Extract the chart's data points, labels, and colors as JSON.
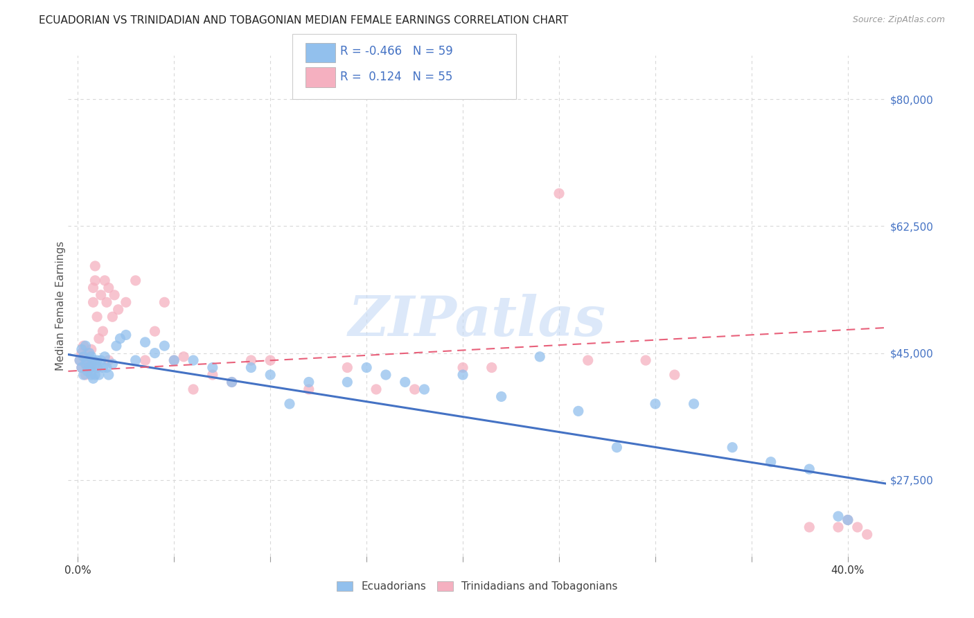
{
  "title": "ECUADORIAN VS TRINIDADIAN AND TOBAGONIAN MEDIAN FEMALE EARNINGS CORRELATION CHART",
  "source": "Source: ZipAtlas.com",
  "ylabel": "Median Female Earnings",
  "yticks": [
    27500,
    45000,
    62500,
    80000
  ],
  "ytick_labels": [
    "$27,500",
    "$45,000",
    "$62,500",
    "$80,000"
  ],
  "xlim": [
    -0.005,
    0.42
  ],
  "ylim": [
    17000,
    86000
  ],
  "r_blue": -0.466,
  "n_blue": 59,
  "r_pink": 0.124,
  "n_pink": 55,
  "blue_color": "#92c0ed",
  "pink_color": "#f5b0c0",
  "trend_blue": "#4472c4",
  "trend_pink": "#e8607a",
  "axis_label_color": "#4472c4",
  "watermark_color": "#c5daf5",
  "legend_ecuadorians": "Ecuadorians",
  "legend_tt": "Trinidadians and Tobagonians",
  "blue_scatter_x": [
    0.001,
    0.002,
    0.002,
    0.003,
    0.003,
    0.004,
    0.004,
    0.005,
    0.005,
    0.006,
    0.006,
    0.007,
    0.007,
    0.007,
    0.008,
    0.008,
    0.009,
    0.009,
    0.01,
    0.01,
    0.011,
    0.012,
    0.013,
    0.014,
    0.015,
    0.016,
    0.018,
    0.02,
    0.022,
    0.025,
    0.03,
    0.035,
    0.04,
    0.045,
    0.05,
    0.06,
    0.07,
    0.08,
    0.09,
    0.1,
    0.11,
    0.12,
    0.14,
    0.15,
    0.16,
    0.17,
    0.18,
    0.2,
    0.22,
    0.24,
    0.26,
    0.28,
    0.3,
    0.32,
    0.34,
    0.36,
    0.38,
    0.395,
    0.4
  ],
  "blue_scatter_y": [
    44000,
    45500,
    43000,
    42000,
    44500,
    46000,
    43500,
    44000,
    42500,
    45000,
    43000,
    44500,
    43000,
    42000,
    44000,
    41500,
    43500,
    42000,
    44000,
    43000,
    42000,
    44000,
    43000,
    44500,
    43000,
    42000,
    43500,
    46000,
    47000,
    47500,
    44000,
    46500,
    45000,
    46000,
    44000,
    44000,
    43000,
    41000,
    43000,
    42000,
    38000,
    41000,
    41000,
    43000,
    42000,
    41000,
    40000,
    42000,
    39000,
    44500,
    37000,
    32000,
    38000,
    38000,
    32000,
    30000,
    29000,
    22500,
    22000
  ],
  "pink_scatter_x": [
    0.001,
    0.002,
    0.002,
    0.003,
    0.003,
    0.004,
    0.004,
    0.005,
    0.005,
    0.006,
    0.007,
    0.007,
    0.008,
    0.008,
    0.009,
    0.009,
    0.01,
    0.01,
    0.011,
    0.012,
    0.013,
    0.014,
    0.015,
    0.016,
    0.016,
    0.018,
    0.019,
    0.021,
    0.025,
    0.03,
    0.035,
    0.04,
    0.045,
    0.05,
    0.055,
    0.06,
    0.07,
    0.08,
    0.09,
    0.1,
    0.12,
    0.14,
    0.155,
    0.175,
    0.2,
    0.215,
    0.25,
    0.265,
    0.295,
    0.31,
    0.38,
    0.395,
    0.4,
    0.405,
    0.41
  ],
  "pink_scatter_y": [
    44000,
    45000,
    43000,
    44500,
    46000,
    43500,
    42000,
    45000,
    43000,
    44000,
    45500,
    43500,
    52000,
    54000,
    55000,
    57000,
    43000,
    50000,
    47000,
    53000,
    48000,
    55000,
    52000,
    44000,
    54000,
    50000,
    53000,
    51000,
    52000,
    55000,
    44000,
    48000,
    52000,
    44000,
    44500,
    40000,
    42000,
    41000,
    44000,
    44000,
    40000,
    43000,
    40000,
    40000,
    43000,
    43000,
    67000,
    44000,
    44000,
    42000,
    21000,
    21000,
    22000,
    21000,
    20000
  ],
  "blue_trend_x": [
    -0.005,
    0.42
  ],
  "blue_trend_y": [
    44800,
    27000
  ],
  "pink_trend_x": [
    -0.005,
    0.42
  ],
  "pink_trend_y": [
    42500,
    48500
  ],
  "grid_color": "#d8d8d8",
  "background_color": "#ffffff"
}
